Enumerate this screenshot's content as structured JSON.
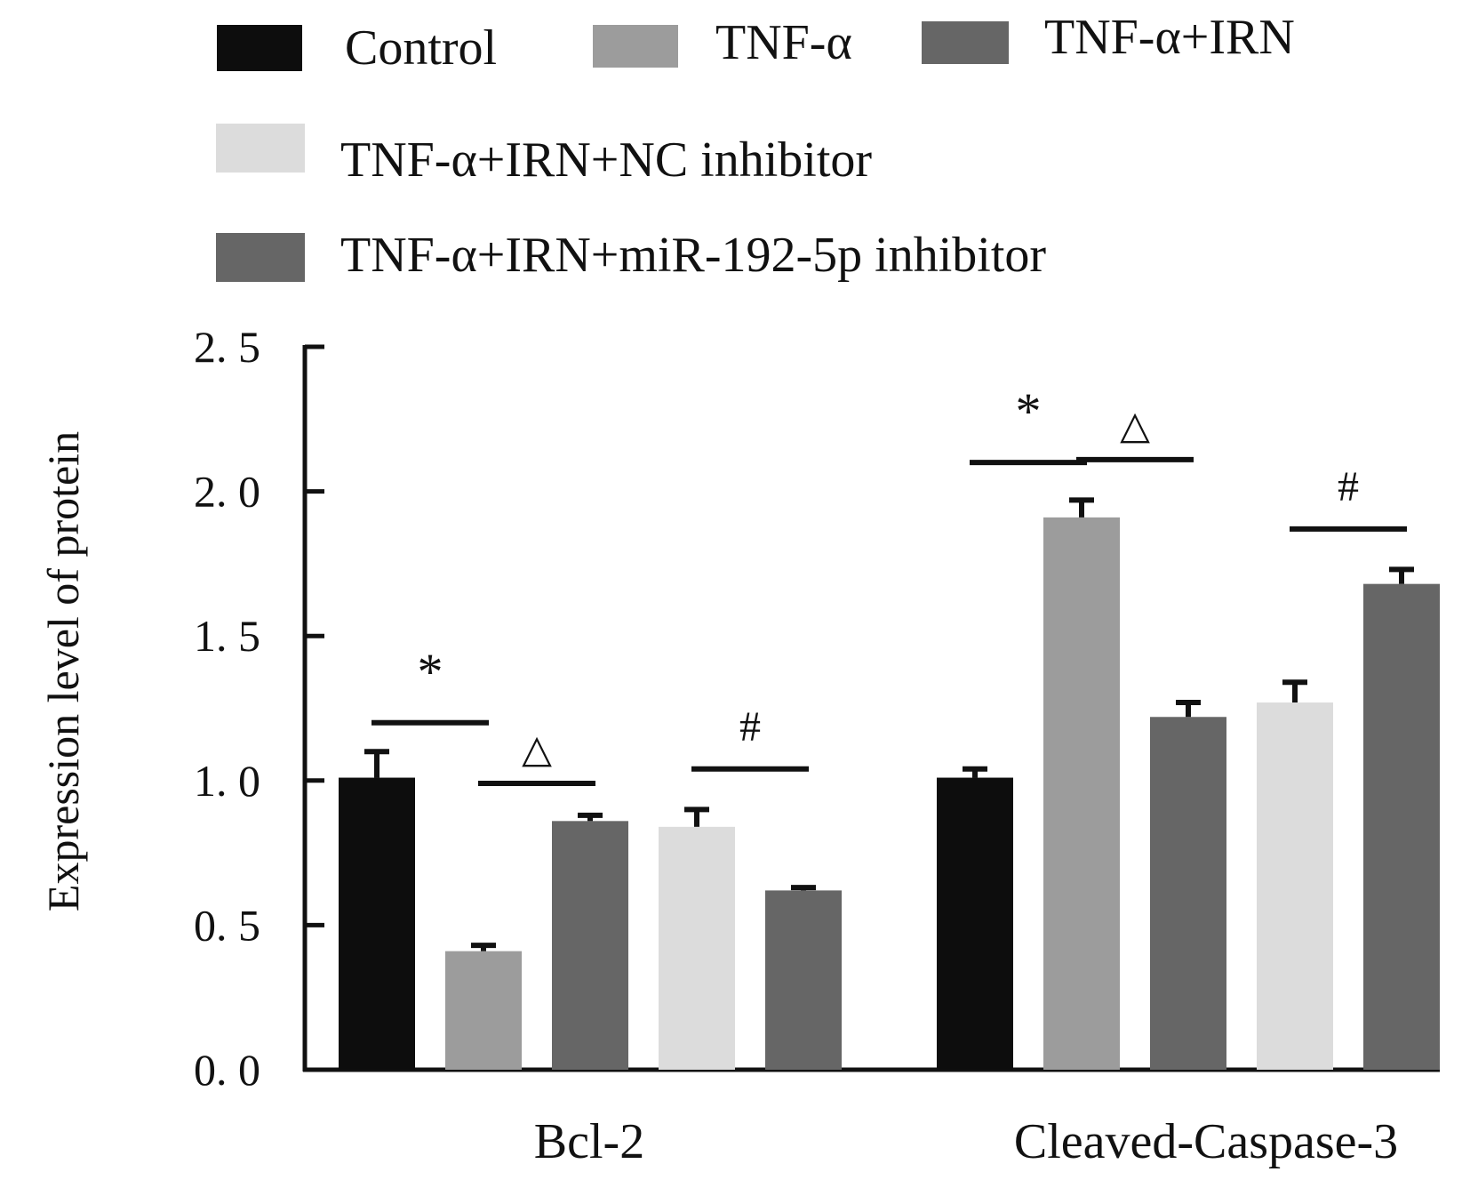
{
  "chart_data": {
    "type": "bar",
    "ylabel": "Expression level of protein",
    "ylim": [
      0,
      2.5
    ],
    "yticks": [
      "0. 0",
      "0. 5",
      "1. 0",
      "1. 5",
      "2. 0",
      "2. 5"
    ],
    "ytick_values": [
      0,
      0.5,
      1.0,
      1.5,
      2.0,
      2.5
    ],
    "categories": [
      "Bcl-2",
      "Cleaved-Caspase-3"
    ],
    "series": [
      {
        "name": "Control",
        "color": "#0d0d0d",
        "values": [
          1.01,
          1.01
        ],
        "errors": [
          0.09,
          0.03
        ]
      },
      {
        "name": "TNF-α",
        "color": "#9c9c9c",
        "values": [
          0.41,
          1.91
        ],
        "errors": [
          0.02,
          0.06
        ]
      },
      {
        "name": "TNF-α+IRN",
        "color": "#666666",
        "values": [
          0.86,
          1.22
        ],
        "errors": [
          0.02,
          0.05
        ]
      },
      {
        "name": "TNF-α+IRN+NC inhibitor",
        "color": "#dcdcdc",
        "values": [
          0.84,
          1.27
        ],
        "errors": [
          0.06,
          0.07
        ]
      },
      {
        "name": "TNF-α+IRN+miR-192-5p inhibitor",
        "color": "#666666",
        "values": [
          0.62,
          1.68
        ],
        "errors": [
          0.01,
          0.05
        ]
      }
    ],
    "legend_placement": "top",
    "grid": false,
    "annotations": [
      {
        "symbol": "*",
        "category": "Bcl-2",
        "between": [
          0,
          1
        ],
        "y": 1.2
      },
      {
        "symbol": "△",
        "category": "Bcl-2",
        "between": [
          1,
          2
        ],
        "y": 0.99
      },
      {
        "symbol": "#",
        "category": "Bcl-2",
        "between": [
          3,
          4
        ],
        "y": 1.04
      },
      {
        "symbol": "*",
        "category": "Cleaved-Caspase-3",
        "between": [
          0,
          1
        ],
        "y": 2.1
      },
      {
        "symbol": "△",
        "category": "Cleaved-Caspase-3",
        "between": [
          1,
          2
        ],
        "y": 2.11
      },
      {
        "symbol": "#",
        "category": "Cleaved-Caspase-3",
        "between": [
          3,
          4
        ],
        "y": 1.87
      }
    ]
  }
}
